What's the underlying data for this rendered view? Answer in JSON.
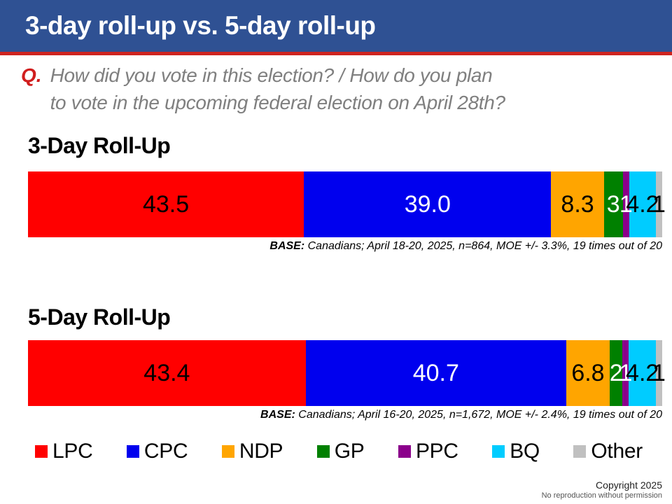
{
  "header": {
    "title": "3-day roll-up vs. 5-day roll-up"
  },
  "question": {
    "prefix": "Q.",
    "line1": "How did you vote in this election? / How do you plan",
    "line2": "to vote in the upcoming federal election on April 28th?"
  },
  "chart_data": [
    {
      "type": "bar",
      "orientation": "horizontal_stacked",
      "title": "3-Day Roll-Up",
      "categories": [
        "LPC",
        "CPC",
        "NDP",
        "GP",
        "PPC",
        "BQ",
        "Other"
      ],
      "values": [
        43.5,
        39.0,
        8.3,
        3,
        1,
        4.2,
        1
      ],
      "xlim": [
        0,
        100
      ],
      "grid": false,
      "segments": [
        {
          "party": "LPC",
          "value": 43.5,
          "label": "43.5",
          "color": "#FF0000",
          "label_color": "#000000"
        },
        {
          "party": "CPC",
          "value": 39.0,
          "label": "39.0",
          "color": "#0000EE",
          "label_color": "#FFFFFF"
        },
        {
          "party": "NDP",
          "value": 8.3,
          "label": "8.3",
          "color": "#FFA500",
          "label_color": "#000000"
        },
        {
          "party": "GP",
          "value": 3,
          "label": "3",
          "color": "#008000",
          "label_color": "#FFFFFF"
        },
        {
          "party": "PPC",
          "value": 1,
          "label": "1",
          "color": "#8B008B",
          "label_color": "#FFFFFF"
        },
        {
          "party": "BQ",
          "value": 4.2,
          "label": "4.2",
          "color": "#00CCFF",
          "label_color": "#000000"
        },
        {
          "party": "Other",
          "value": 1,
          "label": "1",
          "color": "#C0C0C0",
          "label_color": "#000000"
        }
      ],
      "base_label": "BASE:",
      "base_note": "Canadians; April 18-20, 2025, n=864, MOE +/- 3.3%, 19 times out of 20"
    },
    {
      "type": "bar",
      "orientation": "horizontal_stacked",
      "title": "5-Day Roll-Up",
      "categories": [
        "LPC",
        "CPC",
        "NDP",
        "GP",
        "PPC",
        "BQ",
        "Other"
      ],
      "values": [
        43.4,
        40.7,
        6.8,
        2,
        1,
        4.2,
        1
      ],
      "xlim": [
        0,
        100
      ],
      "grid": false,
      "segments": [
        {
          "party": "LPC",
          "value": 43.4,
          "label": "43.4",
          "color": "#FF0000",
          "label_color": "#000000"
        },
        {
          "party": "CPC",
          "value": 40.7,
          "label": "40.7",
          "color": "#0000EE",
          "label_color": "#FFFFFF"
        },
        {
          "party": "NDP",
          "value": 6.8,
          "label": "6.8",
          "color": "#FFA500",
          "label_color": "#000000"
        },
        {
          "party": "GP",
          "value": 2,
          "label": "2",
          "color": "#008000",
          "label_color": "#FFFFFF"
        },
        {
          "party": "PPC",
          "value": 1,
          "label": "1",
          "color": "#8B008B",
          "label_color": "#FFFFFF"
        },
        {
          "party": "BQ",
          "value": 4.2,
          "label": "4.2",
          "color": "#00CCFF",
          "label_color": "#000000"
        },
        {
          "party": "Other",
          "value": 1,
          "label": "1",
          "color": "#C0C0C0",
          "label_color": "#000000"
        }
      ],
      "base_label": "BASE:",
      "base_note": "Canadians; April 16-20, 2025, n=1,672, MOE +/- 2.4%, 19 times out of 20"
    }
  ],
  "legend": {
    "position": "bottom",
    "items": [
      {
        "label": "LPC",
        "color": "#FF0000"
      },
      {
        "label": "CPC",
        "color": "#0000EE"
      },
      {
        "label": "NDP",
        "color": "#FFA500"
      },
      {
        "label": "GP",
        "color": "#008000"
      },
      {
        "label": "PPC",
        "color": "#8B008B"
      },
      {
        "label": "BQ",
        "color": "#00CCFF"
      },
      {
        "label": "Other",
        "color": "#C0C0C0"
      }
    ]
  },
  "footer": {
    "line1": "Copyright 2025",
    "line2": "No reproduction without permission"
  },
  "colors": {
    "header_bg": "#2F5193",
    "divider_red": "#CE2420",
    "question_prefix_red": "#D11E1E",
    "question_gray": "#7F7F7F"
  }
}
